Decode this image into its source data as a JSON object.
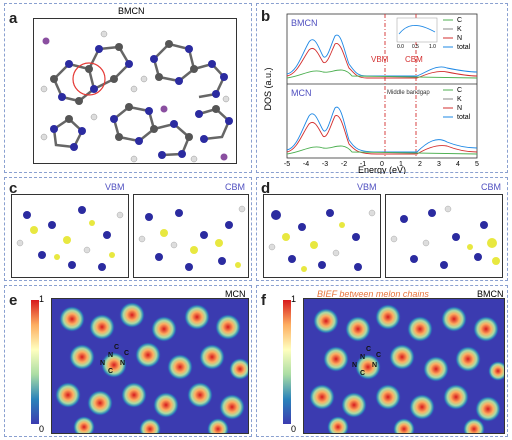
{
  "panels": {
    "a": {
      "label": "a",
      "title": "BMCN"
    },
    "b": {
      "label": "b",
      "ylabel": "DOS (a.u.)",
      "xlabel": "Energy (eV)",
      "top_title": "BMCN",
      "bottom_title": "MCN",
      "vbm": "VBM",
      "cbm": "CBM",
      "middle_bandgap": "Middle bandgap",
      "xticks": [
        "-5",
        "-4",
        "-3",
        "-2",
        "-1",
        "0",
        "1",
        "2",
        "3",
        "4",
        "5"
      ],
      "inset_ticks": [
        "0.0",
        "0.5",
        "1.0"
      ],
      "legend": [
        "C",
        "K",
        "N",
        "total"
      ]
    },
    "c": {
      "label": "c",
      "left": "VBM",
      "right": "CBM"
    },
    "d": {
      "label": "d",
      "left": "VBM",
      "right": "CBM"
    },
    "e": {
      "label": "e",
      "title": "MCN",
      "scale_max": "1",
      "scale_min": "0",
      "atoms": [
        "N",
        "C",
        "N",
        "C",
        "N",
        "C"
      ]
    },
    "f": {
      "label": "f",
      "title": "BMCN",
      "scale_max": "1",
      "scale_min": "0",
      "annotation": "BIEF between melon chains",
      "atoms": [
        "N",
        "C",
        "N",
        "C",
        "N",
        "C"
      ]
    }
  },
  "colors": {
    "C": "#4caf50",
    "K": "#888888",
    "N": "#d32f2f",
    "total": "#1e88e5",
    "vbm_cbm": "#d32f2f"
  }
}
